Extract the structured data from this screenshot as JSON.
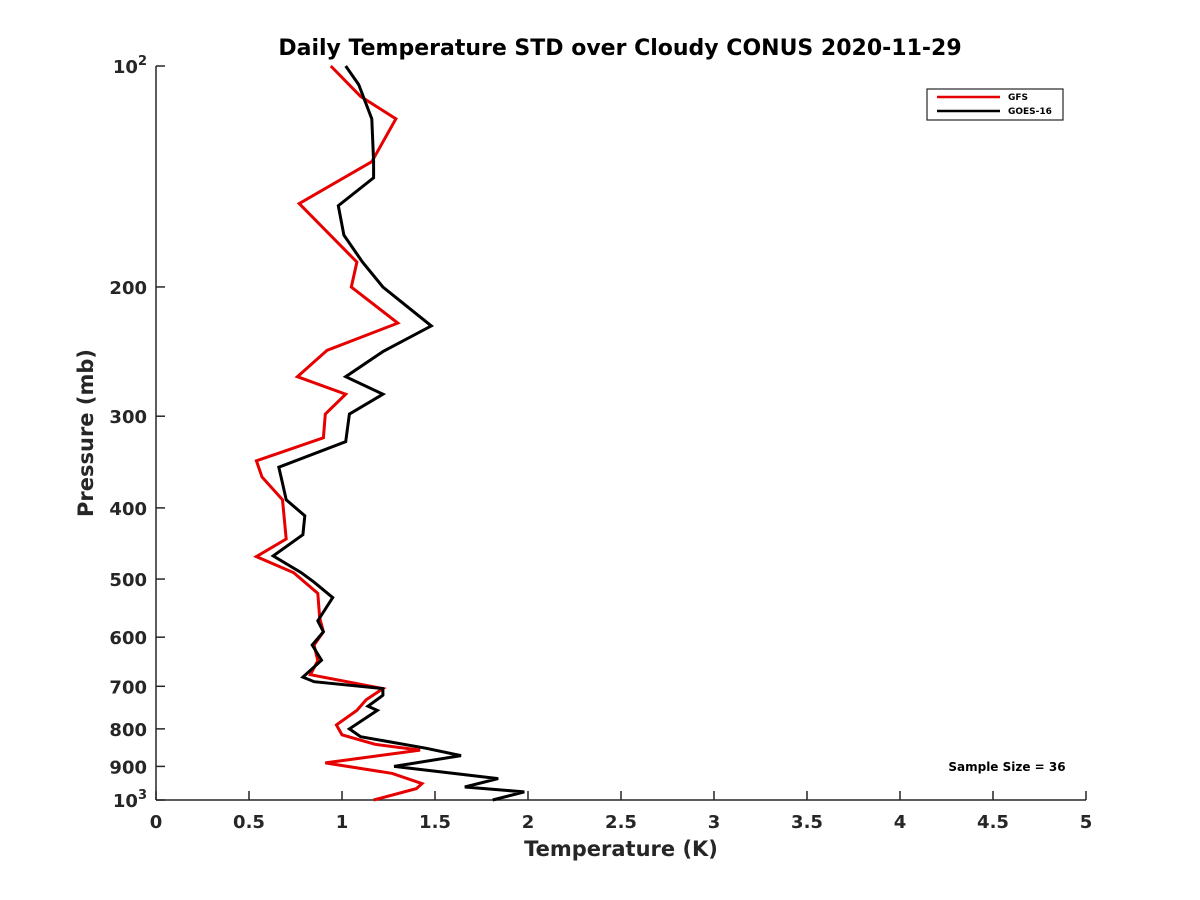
{
  "chart_data": {
    "type": "line",
    "title": "Daily Temperature STD over Cloudy CONUS 2020-11-29",
    "xlabel": "Temperature (K)",
    "ylabel": "Pressure (mb)",
    "xlim": [
      0,
      5
    ],
    "ylim": [
      100,
      1000
    ],
    "y_scale": "log",
    "y_reversed": true,
    "grid": false,
    "legend_position": "top-right",
    "x_ticks": [
      0,
      0.5,
      1,
      1.5,
      2,
      2.5,
      3,
      3.5,
      4,
      4.5,
      5
    ],
    "x_tick_labels": [
      "0",
      "0.5",
      "1",
      "1.5",
      "2",
      "2.5",
      "3",
      "3.5",
      "4",
      "4.5",
      "5"
    ],
    "y_ticks": [
      100,
      200,
      300,
      400,
      500,
      600,
      700,
      800,
      900,
      1000
    ],
    "y_tick_labels": [
      {
        "base": "10",
        "exp": "2"
      },
      {
        "base": "200",
        "exp": ""
      },
      {
        "base": "300",
        "exp": ""
      },
      {
        "base": "400",
        "exp": ""
      },
      {
        "base": "500",
        "exp": ""
      },
      {
        "base": "600",
        "exp": ""
      },
      {
        "base": "700",
        "exp": ""
      },
      {
        "base": "800",
        "exp": ""
      },
      {
        "base": "900",
        "exp": ""
      },
      {
        "base": "10",
        "exp": "3"
      }
    ],
    "annotation": "Sample Size = 36",
    "series": [
      {
        "name": "GFS",
        "color": "#e60000",
        "points": [
          [
            0.94,
            100
          ],
          [
            1.1,
            110
          ],
          [
            1.29,
            118
          ],
          [
            1.16,
            135
          ],
          [
            0.77,
            154
          ],
          [
            1.08,
            185
          ],
          [
            1.05,
            200
          ],
          [
            1.3,
            224
          ],
          [
            0.92,
            244
          ],
          [
            0.76,
            265
          ],
          [
            1.02,
            280
          ],
          [
            0.91,
            298
          ],
          [
            0.9,
            321
          ],
          [
            0.54,
            345
          ],
          [
            0.57,
            363
          ],
          [
            0.68,
            390
          ],
          [
            0.69,
            414
          ],
          [
            0.7,
            441
          ],
          [
            0.54,
            466
          ],
          [
            0.74,
            490
          ],
          [
            0.87,
            523
          ],
          [
            0.88,
            565
          ],
          [
            0.9,
            590
          ],
          [
            0.85,
            615
          ],
          [
            0.87,
            646
          ],
          [
            0.83,
            675
          ],
          [
            1.22,
            705
          ],
          [
            1.13,
            730
          ],
          [
            1.08,
            755
          ],
          [
            0.97,
            790
          ],
          [
            1.0,
            815
          ],
          [
            1.18,
            840
          ],
          [
            1.42,
            855
          ],
          [
            0.91,
            890
          ],
          [
            1.27,
            920
          ],
          [
            1.43,
            950
          ],
          [
            1.4,
            965
          ],
          [
            1.17,
            1000
          ]
        ]
      },
      {
        "name": "GOES-16",
        "color": "#000000",
        "points": [
          [
            1.02,
            100
          ],
          [
            1.09,
            106
          ],
          [
            1.16,
            118
          ],
          [
            1.17,
            135
          ],
          [
            1.17,
            142
          ],
          [
            0.98,
            155
          ],
          [
            1.01,
            170
          ],
          [
            1.11,
            185
          ],
          [
            1.22,
            200
          ],
          [
            1.48,
            226
          ],
          [
            1.22,
            245
          ],
          [
            1.02,
            265
          ],
          [
            1.22,
            280
          ],
          [
            1.04,
            298
          ],
          [
            1.02,
            325
          ],
          [
            0.66,
            352
          ],
          [
            0.68,
            370
          ],
          [
            0.7,
            390
          ],
          [
            0.8,
            410
          ],
          [
            0.79,
            435
          ],
          [
            0.63,
            465
          ],
          [
            0.78,
            490
          ],
          [
            0.85,
            505
          ],
          [
            0.95,
            530
          ],
          [
            0.87,
            570
          ],
          [
            0.9,
            590
          ],
          [
            0.84,
            615
          ],
          [
            0.89,
            645
          ],
          [
            0.79,
            680
          ],
          [
            0.85,
            690
          ],
          [
            1.22,
            705
          ],
          [
            1.22,
            720
          ],
          [
            1.14,
            745
          ],
          [
            1.19,
            755
          ],
          [
            1.04,
            800
          ],
          [
            1.1,
            820
          ],
          [
            1.45,
            850
          ],
          [
            1.64,
            870
          ],
          [
            1.28,
            900
          ],
          [
            1.84,
            935
          ],
          [
            1.66,
            960
          ],
          [
            1.98,
            975
          ],
          [
            1.81,
            1000
          ]
        ]
      }
    ]
  }
}
